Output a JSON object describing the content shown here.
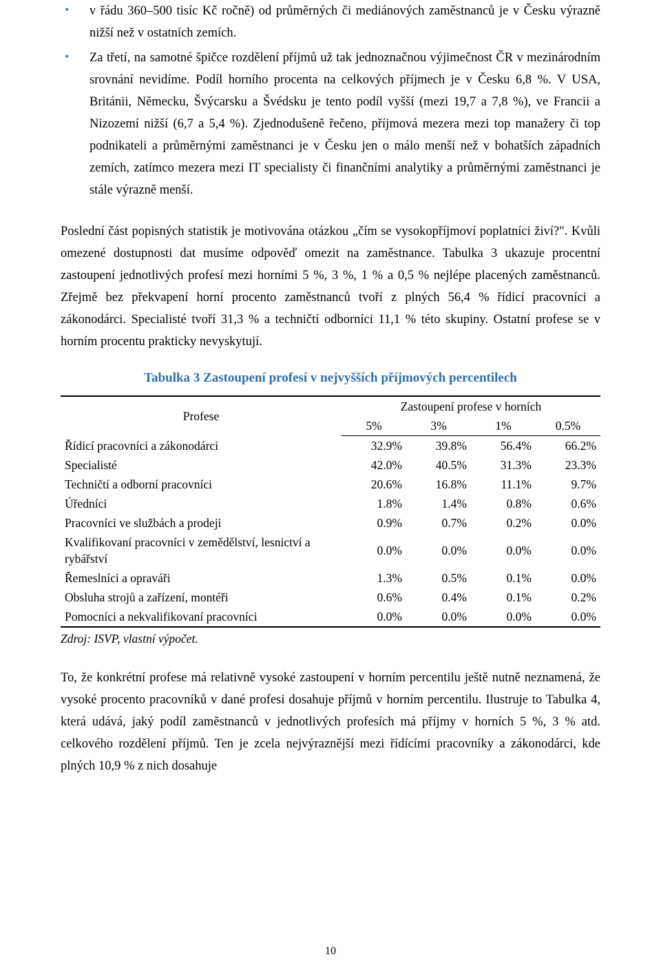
{
  "colors": {
    "accent": "#2f6fa8",
    "bullet": "#3d7fb8",
    "text": "#000000",
    "background": "#ffffff"
  },
  "bullets": [
    "v řádu 360–500 tisíc Kč ročně) od průměrných či mediánových zaměstnanců je v Česku výrazně nižší než v ostatních zemích.",
    "Za třetí, na samotné špičce rozdělení příjmů už tak jednoznačnou výjimečnost ČR v mezinárodním srovnání nevidíme. Podíl horního procenta na celkových příjmech je v Česku 6,8 %. V USA, Británii, Německu, Švýcarsku a Švédsku je tento podíl vyšší (mezi 19,7 a 7,8 %), ve Francii a Nizozemí nižší (6,7 a 5,4 %). Zjednodušeně řečeno, příjmová mezera mezi top manažery či top podnikateli a průměrnými zaměstnanci je v Česku jen o málo menší než v bohatších západních zemích, zatímco mezera mezi IT specialisty či finančními analytiky a průměrnými zaměstnanci je stále výrazně menší."
  ],
  "para1": "Poslední část popisných statistik je motivována otázkou „čím se vysokopříjmoví poplatníci živí?\". Kvůli omezené dostupnosti dat musíme odpověď omezit na zaměstnance. Tabulka 3 ukazuje procentní zastoupení jednotlivých profesí mezi horními 5 %, 3 %, 1 % a 0,5 % nejlépe placených zaměstnanců. Zřejmě bez překvapení horní procento zaměstnanců tvoří z plných 56,4 % řídicí pracovníci a zákonodárci. Specialisté tvoří 31,3 % a techničtí odborníci 11,1 % této skupiny. Ostatní profese se v horním procentu prakticky nevyskytují.",
  "table": {
    "title": "Tabulka 3  Zastoupení profesí v nejvyšších příjmových percentilech",
    "profese_label": "Profese",
    "super_header": "Zastoupení profese v horních",
    "cols": [
      "5%",
      "3%",
      "1%",
      "0.5%"
    ],
    "rows": [
      {
        "label": "Řídicí pracovníci a zákonodárci",
        "v": [
          "32.9%",
          "39.8%",
          "56.4%",
          "66.2%"
        ]
      },
      {
        "label": "Specialisté",
        "v": [
          "42.0%",
          "40.5%",
          "31.3%",
          "23.3%"
        ]
      },
      {
        "label": "Techničtí a odborní pracovníci",
        "v": [
          "20.6%",
          "16.8%",
          "11.1%",
          "9.7%"
        ]
      },
      {
        "label": "Úředníci",
        "v": [
          "1.8%",
          "1.4%",
          "0.8%",
          "0.6%"
        ]
      },
      {
        "label": "Pracovníci ve službách a prodeji",
        "v": [
          "0.9%",
          "0.7%",
          "0.2%",
          "0.0%"
        ]
      },
      {
        "label": "Kvalifikovaní pracovníci v zemědělství, lesnictví a rybářství",
        "v": [
          "0.0%",
          "0.0%",
          "0.0%",
          "0.0%"
        ]
      },
      {
        "label": "Řemeslníci a opraváři",
        "v": [
          "1.3%",
          "0.5%",
          "0.1%",
          "0.0%"
        ]
      },
      {
        "label": "Obsluha strojů a zařízení, montéři",
        "v": [
          "0.6%",
          "0.4%",
          "0.1%",
          "0.2%"
        ]
      },
      {
        "label": "Pomocníci a nekvalifikovaní pracovníci",
        "v": [
          "0.0%",
          "0.0%",
          "0.0%",
          "0.0%"
        ]
      }
    ]
  },
  "source": "Zdroj: ISVP, vlastní výpočet.",
  "para2": "To, že konkrétní profese má relativně vysoké zastoupení v horním percentilu ještě nutně neznamená, že vysoké procento pracovníků v dané profesi dosahuje příjmů v horním percentilu. Ilustruje to Tabulka 4, která udává, jaký podíl zaměstnanců v jednotlivých profesích má příjmy v horních 5 %, 3 % atd. celkového rozdělení příjmů. Ten je zcela nejvýraznější mezi řídícími pracovníky a zákonodárci, kde plných 10,9 % z nich dosahuje",
  "page_number": "10"
}
